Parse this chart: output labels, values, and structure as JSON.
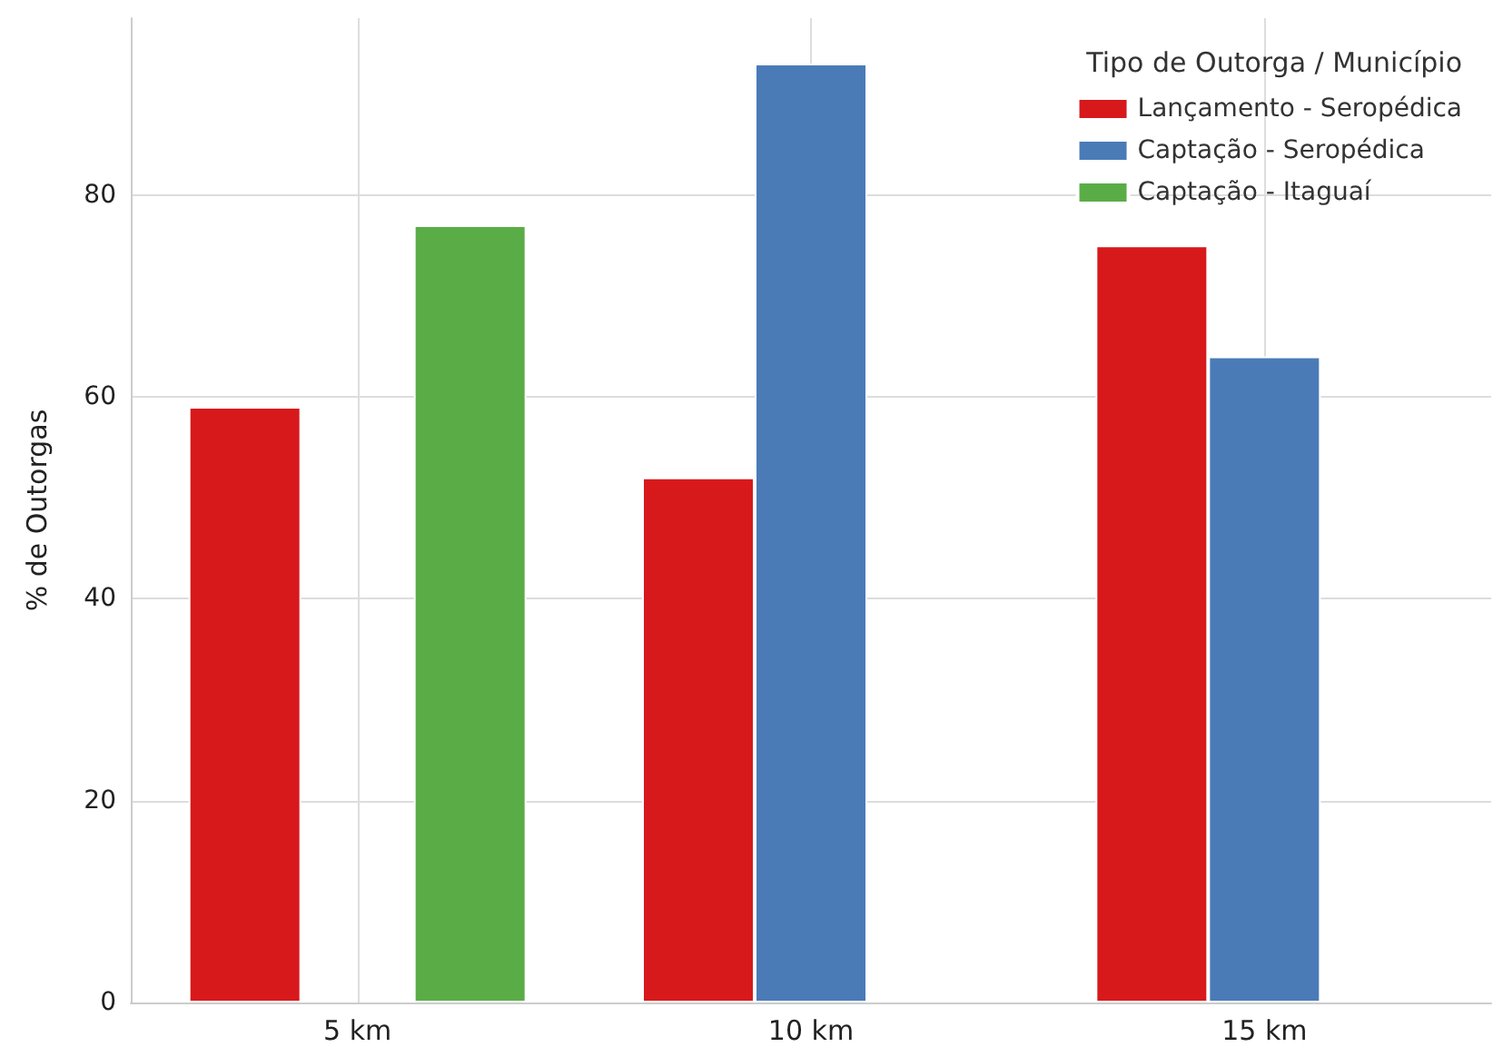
{
  "chart_data": {
    "type": "bar",
    "ylabel": "% de Outorgas",
    "legend_title": "Tipo de Outorga / Município",
    "categories": [
      "5 km",
      "10 km",
      "15 km"
    ],
    "series": [
      {
        "name": "Lançamento - Seropédica",
        "color": "#d7191c",
        "values": [
          59,
          52,
          75
        ]
      },
      {
        "name": "Captação - Seropédica",
        "color": "#4a7bb7",
        "values": [
          null,
          93,
          64
        ]
      },
      {
        "name": "Captação - Itaguaí",
        "color": "#5aad46",
        "values": [
          77,
          null,
          null
        ]
      }
    ],
    "ylim": [
      0,
      97.5
    ],
    "yticks": [
      0,
      20,
      40,
      60,
      80
    ],
    "grid": true,
    "legend": "top right"
  }
}
